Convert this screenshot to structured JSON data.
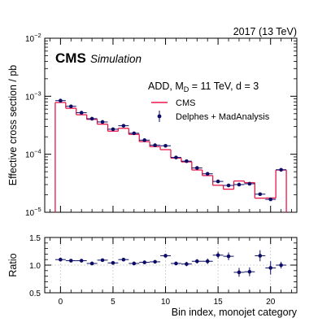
{
  "header": {
    "experiment": "CMS",
    "sim_label": "Simulation",
    "lumi_label": "2017 (13 TeV)"
  },
  "legend": {
    "title_prefix": "ADD, M",
    "title_sub": "D",
    "title_suffix": " = 11 TeV, d = 3",
    "entries": [
      "CMS",
      "Delphes + MadAnalysis"
    ],
    "position": "top-right"
  },
  "chart_data": [
    {
      "type": "line",
      "panel": "main",
      "xlabel": "",
      "ylabel": "Effective cross section / pb",
      "yscale": "log",
      "xlim": [
        -1.5,
        22.5
      ],
      "ylim": [
        1e-05,
        0.01
      ],
      "x_ticks": [
        "0",
        "5",
        "10",
        "15",
        "20"
      ],
      "y_ticks": [
        "10",
        "10",
        "10",
        "10"
      ],
      "y_tick_exponents": [
        "−5",
        "−4",
        "−3",
        "−2"
      ],
      "y_tick_values": [
        1e-05,
        0.0001,
        0.001,
        0.01
      ],
      "grid": false,
      "colors": {
        "cms": "#e8174a",
        "delphes": "#0c0c66"
      },
      "series": [
        {
          "name": "CMS",
          "style": "step",
          "bins": [
            0,
            1,
            2,
            3,
            4,
            5,
            6,
            7,
            8,
            9,
            10,
            11,
            12,
            13,
            14,
            15,
            16,
            17,
            18,
            19,
            20,
            21
          ],
          "values": [
            0.00078,
            0.00062,
            0.00048,
            0.0004,
            0.00033,
            0.00025,
            0.00028,
            0.00022,
            0.000165,
            0.000135,
            0.00012,
            8.58e-05,
            7.38e-05,
            5.36e-05,
            4.29e-05,
            2.92e-05,
            2.5e-05,
            3.46e-05,
            3.24e-05,
            1.75e-05,
            1.76e-05,
            5.35e-05
          ]
        },
        {
          "name": "Delphes + MadAnalysis",
          "style": "points",
          "bins": [
            0,
            1,
            2,
            3,
            4,
            5,
            6,
            7,
            8,
            9,
            10,
            11,
            12,
            13,
            14,
            15,
            16,
            17,
            18,
            19,
            20,
            21
          ],
          "values": [
            0.00084,
            0.00067,
            0.00052,
            0.00041,
            0.00036,
            0.00027,
            0.00031,
            0.00023,
            0.000175,
            0.000143,
            0.00014,
            8.8e-05,
            7.6e-05,
            5.8e-05,
            4.6e-05,
            3.4e-05,
            2.9e-05,
            3e-05,
            3.1e-05,
            2.05e-05,
            1.67e-05,
            5.4e-05
          ]
        }
      ]
    },
    {
      "type": "scatter",
      "panel": "ratio",
      "xlabel": "Bin index, monojet category",
      "ylabel": "Ratio",
      "xlim": [
        -1.5,
        22.5
      ],
      "ylim": [
        0.5,
        1.5
      ],
      "x_ticks": [
        "0",
        "5",
        "10",
        "15",
        "20"
      ],
      "x_tick_values": [
        0,
        5,
        10,
        15,
        20
      ],
      "y_ticks": [
        "0.5",
        "1.0",
        "1.5"
      ],
      "y_tick_values": [
        0.5,
        1.0,
        1.5
      ],
      "grid": true,
      "series": [
        {
          "name": "Ratio",
          "x": [
            0,
            1,
            2,
            3,
            4,
            5,
            6,
            7,
            8,
            9,
            10,
            11,
            12,
            13,
            14,
            15,
            16,
            17,
            18,
            19,
            20,
            21
          ],
          "y": [
            1.1,
            1.08,
            1.08,
            1.03,
            1.09,
            1.04,
            1.1,
            1.03,
            1.05,
            1.06,
            1.17,
            1.03,
            1.02,
            1.07,
            1.07,
            1.18,
            1.16,
            0.87,
            0.88,
            1.17,
            0.95,
            1.0
          ],
          "yerr": [
            0.02,
            0.02,
            0.02,
            0.02,
            0.02,
            0.02,
            0.02,
            0.02,
            0.03,
            0.03,
            0.03,
            0.03,
            0.04,
            0.04,
            0.05,
            0.06,
            0.07,
            0.08,
            0.08,
            0.1,
            0.12,
            0.06
          ]
        }
      ]
    }
  ]
}
